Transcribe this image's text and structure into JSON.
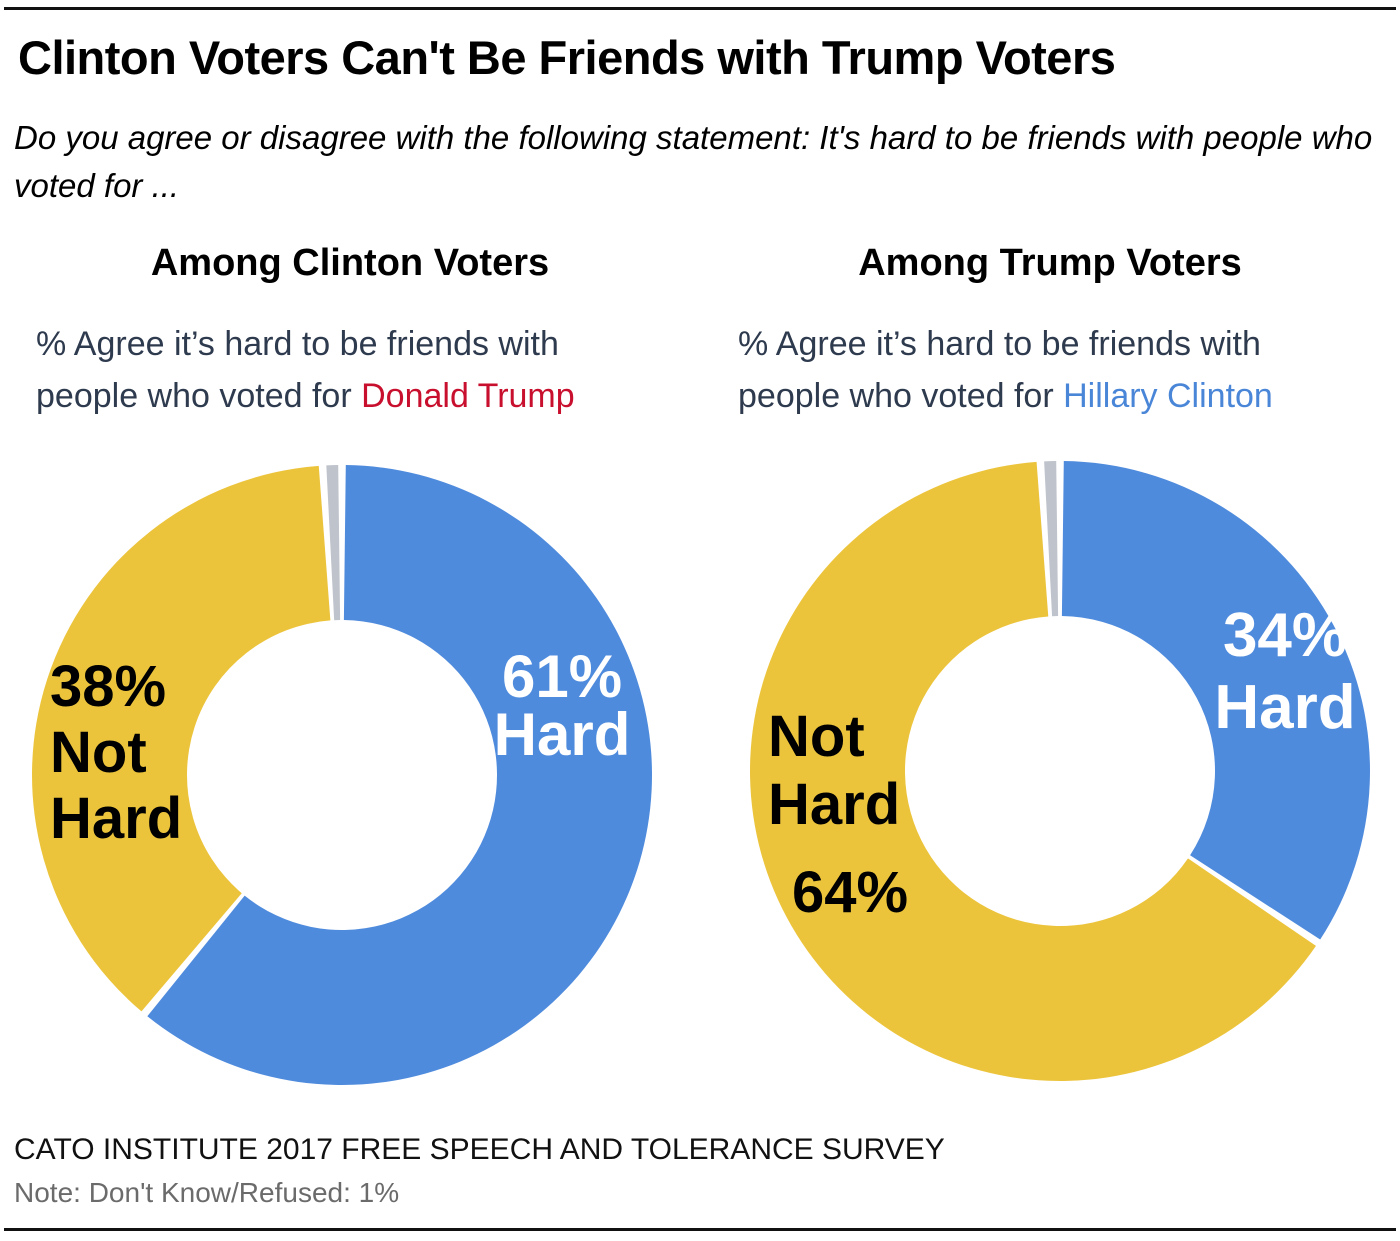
{
  "title": "Clinton Voters Can't Be Friends with Trump Voters",
  "subtitle": "Do you agree or disagree with the following statement: It's hard to be friends with people who voted for ...",
  "colors": {
    "hard": "#4F8BDD",
    "not_hard": "#ECC43C",
    "dont_know": "#BFC3CB",
    "trump_red": "#C8102E",
    "clinton_blue": "#4A86D8",
    "desc_text": "#2E3A4E"
  },
  "panels": [
    {
      "title": "Among Clinton Voters",
      "desc_prefix_line1": "% Agree it’s hard to be friends with",
      "desc_prefix_line2": "people who voted for ",
      "desc_highlight": "Donald Trump"
    },
    {
      "title": "Among Trump Voters",
      "desc_prefix_line1": "% Agree it’s hard to be friends with",
      "desc_prefix_line2": "people who voted for ",
      "desc_highlight": "Hillary Clinton"
    }
  ],
  "chart_data": [
    {
      "type": "pie",
      "variant": "donut",
      "title": "Among Clinton Voters",
      "categories": [
        "Hard",
        "Not Hard",
        "Don't Know/Refused"
      ],
      "values": [
        61,
        38,
        1
      ],
      "labels": [
        {
          "lines": [
            "61%",
            "Hard"
          ],
          "color": "#ffffff"
        },
        {
          "lines": [
            "38%",
            "Not",
            "Hard"
          ],
          "color": "#000000"
        },
        {
          "lines": [],
          "color": "#000000"
        }
      ],
      "slice_colors": [
        "#4F8BDD",
        "#ECC43C",
        "#BFC3CB"
      ],
      "start": "12 o'clock",
      "direction": "clockwise"
    },
    {
      "type": "pie",
      "variant": "donut",
      "title": "Among Trump Voters",
      "categories": [
        "Hard",
        "Not Hard",
        "Don't Know/Refused"
      ],
      "values": [
        34,
        64,
        1
      ],
      "labels": [
        {
          "lines": [
            "34%",
            "Hard"
          ],
          "color": "#ffffff"
        },
        {
          "lines": [
            "Not",
            "Hard",
            "64%"
          ],
          "color": "#000000"
        },
        {
          "lines": [],
          "color": "#000000"
        }
      ],
      "slice_colors": [
        "#4F8BDD",
        "#ECC43C",
        "#BFC3CB"
      ],
      "start": "12 o'clock",
      "direction": "clockwise"
    }
  ],
  "footer": {
    "source": "CATO INSTITUTE 2017 FREE SPEECH AND TOLERANCE SURVEY",
    "note": "Note: Don't Know/Refused: 1%"
  }
}
